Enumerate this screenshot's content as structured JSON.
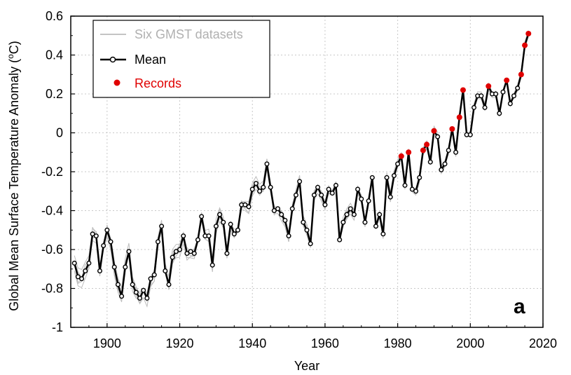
{
  "chart_data": {
    "type": "line",
    "title": "",
    "xlabel": "Year",
    "ylabel": "Global Mean Surface Temperature Anomaly (",
    "ylabel_unit": "o",
    "ylabel_suffix": "C)",
    "panel_label": "a",
    "xlim": [
      1890,
      2020
    ],
    "ylim": [
      -1,
      0.6
    ],
    "xticks": [
      1900,
      1920,
      1940,
      1960,
      1980,
      2000,
      2020
    ],
    "yticks": [
      -1,
      -0.8,
      -0.6,
      -0.4,
      -0.2,
      0,
      0.2,
      0.4,
      0.6
    ],
    "xtick_labels": [
      "1900",
      "1920",
      "1940",
      "1960",
      "1980",
      "2000",
      "2020"
    ],
    "ytick_labels": [
      "-1",
      "-0.8",
      "-0.6",
      "-0.4",
      "-0.2",
      "0",
      "0.2",
      "0.4",
      "0.6"
    ],
    "grid": true,
    "legend_position": "top-left",
    "legend": [
      {
        "name": "Six GMST datasets",
        "color": "#b0b0b0",
        "style": "thin-line"
      },
      {
        "name": "Mean",
        "color": "#000000",
        "style": "line-with-circle-markers"
      },
      {
        "name": "Records",
        "color": "#e00000",
        "style": "dot"
      }
    ],
    "x": [
      1891,
      1892,
      1893,
      1894,
      1895,
      1896,
      1897,
      1898,
      1899,
      1900,
      1901,
      1902,
      1903,
      1904,
      1905,
      1906,
      1907,
      1908,
      1909,
      1910,
      1911,
      1912,
      1913,
      1914,
      1915,
      1916,
      1917,
      1918,
      1919,
      1920,
      1921,
      1922,
      1923,
      1924,
      1925,
      1926,
      1927,
      1928,
      1929,
      1930,
      1931,
      1932,
      1933,
      1934,
      1935,
      1936,
      1937,
      1938,
      1939,
      1940,
      1941,
      1942,
      1943,
      1944,
      1945,
      1946,
      1947,
      1948,
      1949,
      1950,
      1951,
      1952,
      1953,
      1954,
      1955,
      1956,
      1957,
      1958,
      1959,
      1960,
      1961,
      1962,
      1963,
      1964,
      1965,
      1966,
      1967,
      1968,
      1969,
      1970,
      1971,
      1972,
      1973,
      1974,
      1975,
      1976,
      1977,
      1978,
      1979,
      1980,
      1981,
      1982,
      1983,
      1984,
      1985,
      1986,
      1987,
      1988,
      1989,
      1990,
      1991,
      1992,
      1993,
      1994,
      1995,
      1996,
      1997,
      1998,
      1999,
      2000,
      2001,
      2002,
      2003,
      2004,
      2005,
      2006,
      2007,
      2008,
      2009,
      2010,
      2011,
      2012,
      2013,
      2014,
      2015,
      2016
    ],
    "series": [
      {
        "name": "Mean",
        "color": "#000000",
        "values": [
          -0.67,
          -0.74,
          -0.75,
          -0.71,
          -0.67,
          -0.52,
          -0.53,
          -0.71,
          -0.58,
          -0.5,
          -0.56,
          -0.69,
          -0.78,
          -0.84,
          -0.69,
          -0.61,
          -0.78,
          -0.82,
          -0.85,
          -0.81,
          -0.85,
          -0.75,
          -0.73,
          -0.56,
          -0.48,
          -0.71,
          -0.78,
          -0.64,
          -0.61,
          -0.6,
          -0.53,
          -0.62,
          -0.61,
          -0.62,
          -0.55,
          -0.43,
          -0.53,
          -0.53,
          -0.68,
          -0.48,
          -0.42,
          -0.46,
          -0.62,
          -0.47,
          -0.52,
          -0.5,
          -0.37,
          -0.37,
          -0.38,
          -0.29,
          -0.26,
          -0.3,
          -0.28,
          -0.16,
          -0.28,
          -0.4,
          -0.39,
          -0.42,
          -0.45,
          -0.53,
          -0.39,
          -0.32,
          -0.25,
          -0.46,
          -0.5,
          -0.57,
          -0.32,
          -0.28,
          -0.32,
          -0.37,
          -0.29,
          -0.31,
          -0.27,
          -0.55,
          -0.46,
          -0.42,
          -0.39,
          -0.42,
          -0.29,
          -0.34,
          -0.46,
          -0.35,
          -0.23,
          -0.48,
          -0.42,
          -0.52,
          -0.23,
          -0.33,
          -0.22,
          -0.16,
          -0.12,
          -0.27,
          -0.1,
          -0.29,
          -0.3,
          -0.23,
          -0.09,
          -0.06,
          -0.15,
          0.01,
          -0.02,
          -0.19,
          -0.16,
          -0.09,
          0.02,
          -0.1,
          0.08,
          0.22,
          -0.01,
          -0.01,
          0.13,
          0.19,
          0.19,
          0.13,
          0.24,
          0.2,
          0.2,
          0.1,
          0.21,
          0.27,
          0.15,
          0.19,
          0.23,
          0.3,
          0.45,
          0.51
        ]
      }
    ],
    "records": {
      "name": "Records",
      "color": "#e00000",
      "x": [
        1981,
        1983,
        1987,
        1988,
        1990,
        1995,
        1997,
        1998,
        2005,
        2010,
        2014,
        2015,
        2016
      ],
      "values": [
        -0.12,
        -0.1,
        -0.09,
        -0.06,
        0.01,
        0.02,
        0.08,
        0.22,
        0.24,
        0.27,
        0.3,
        0.45,
        0.51
      ]
    }
  }
}
